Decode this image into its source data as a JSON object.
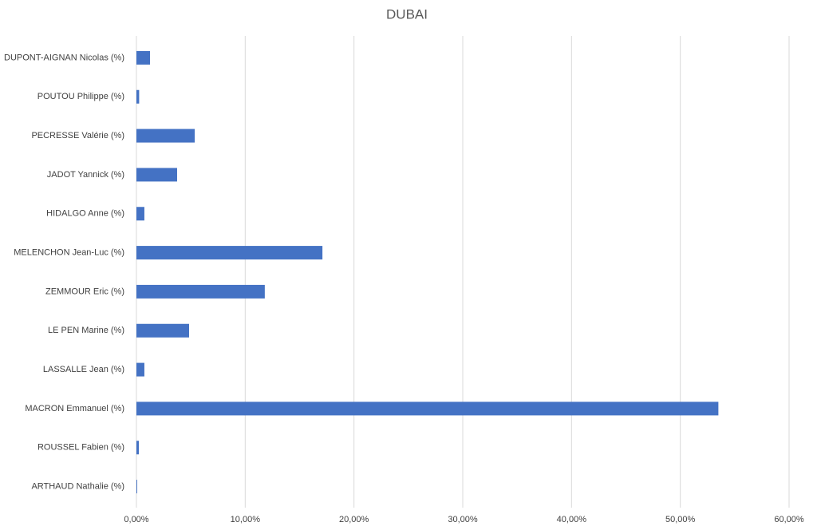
{
  "chart_data": {
    "type": "hbar",
    "title": "DUBAI",
    "categories": [
      "DUPONT-AIGNAN Nicolas (%)",
      "POUTOU Philippe (%)",
      "PECRESSE Valérie (%)",
      "JADOT Yannick (%)",
      "HIDALGO Anne (%)",
      "MELENCHON Jean-Luc (%)",
      "ZEMMOUR Eric (%)",
      "LE PEN Marine (%)",
      "LASSALLE Jean (%)",
      "MACRON Emmanuel (%)",
      "ROUSSEL Fabien (%)",
      "ARTHAUD Nathalie (%)"
    ],
    "values": [
      1.25,
      0.25,
      5.36,
      3.74,
      0.73,
      17.1,
      11.8,
      4.84,
      0.73,
      53.5,
      0.22,
      0.07
    ],
    "color": "#4472c4",
    "xlim": [
      0,
      60
    ],
    "xticks": [
      {
        "value": 0,
        "label": "0,00%"
      },
      {
        "value": 10,
        "label": "10,00%"
      },
      {
        "value": 20,
        "label": "20,00%"
      },
      {
        "value": 30,
        "label": "30,00%"
      },
      {
        "value": 40,
        "label": "40,00%"
      },
      {
        "value": 50,
        "label": "50,00%"
      },
      {
        "value": 60,
        "label": "60,00%"
      }
    ],
    "grid": true
  }
}
